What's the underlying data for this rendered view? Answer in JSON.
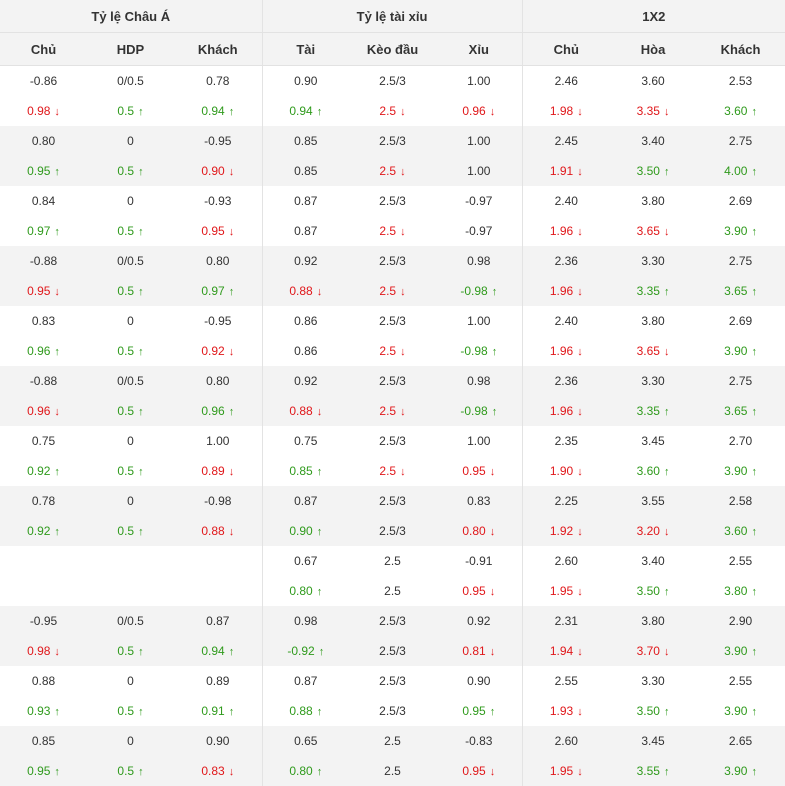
{
  "headers": {
    "groups": [
      "Tỷ lệ Châu Á",
      "Tỷ lệ tài xỉu",
      "1X2"
    ],
    "columns": [
      "Chủ",
      "HDP",
      "Khách",
      "Tài",
      "Kèo đầu",
      "Xỉu",
      "Chủ",
      "Hòa",
      "Khách"
    ]
  },
  "rows": [
    {
      "open": [
        "-0.86",
        "0/0.5",
        "0.78",
        "0.90",
        "2.5/3",
        "1.00",
        "2.46",
        "3.60",
        "2.53"
      ],
      "live": [
        [
          "0.98",
          "down"
        ],
        [
          "0.5",
          "up"
        ],
        [
          "0.94",
          "up"
        ],
        [
          "0.94",
          "up"
        ],
        [
          "2.5",
          "down"
        ],
        [
          "0.96",
          "down"
        ],
        [
          "1.98",
          "down"
        ],
        [
          "3.35",
          "down"
        ],
        [
          "3.60",
          "up"
        ]
      ]
    },
    {
      "open": [
        "0.80",
        "0",
        "-0.95",
        "0.85",
        "2.5/3",
        "1.00",
        "2.45",
        "3.40",
        "2.75"
      ],
      "live": [
        [
          "0.95",
          "up"
        ],
        [
          "0.5",
          "up"
        ],
        [
          "0.90",
          "down"
        ],
        [
          "0.85",
          ""
        ],
        [
          "2.5",
          "down"
        ],
        [
          "1.00",
          ""
        ],
        [
          "1.91",
          "down"
        ],
        [
          "3.50",
          "up"
        ],
        [
          "4.00",
          "up"
        ]
      ]
    },
    {
      "open": [
        "0.84",
        "0",
        "-0.93",
        "0.87",
        "2.5/3",
        "-0.97",
        "2.40",
        "3.80",
        "2.69"
      ],
      "live": [
        [
          "0.97",
          "up"
        ],
        [
          "0.5",
          "up"
        ],
        [
          "0.95",
          "down"
        ],
        [
          "0.87",
          ""
        ],
        [
          "2.5",
          "down"
        ],
        [
          "-0.97",
          ""
        ],
        [
          "1.96",
          "down"
        ],
        [
          "3.65",
          "down"
        ],
        [
          "3.90",
          "up"
        ]
      ]
    },
    {
      "open": [
        "-0.88",
        "0/0.5",
        "0.80",
        "0.92",
        "2.5/3",
        "0.98",
        "2.36",
        "3.30",
        "2.75"
      ],
      "live": [
        [
          "0.95",
          "down"
        ],
        [
          "0.5",
          "up"
        ],
        [
          "0.97",
          "up"
        ],
        [
          "0.88",
          "down"
        ],
        [
          "2.5",
          "down"
        ],
        [
          "-0.98",
          "up"
        ],
        [
          "1.96",
          "down"
        ],
        [
          "3.35",
          "up"
        ],
        [
          "3.65",
          "up"
        ]
      ]
    },
    {
      "open": [
        "0.83",
        "0",
        "-0.95",
        "0.86",
        "2.5/3",
        "1.00",
        "2.40",
        "3.80",
        "2.69"
      ],
      "live": [
        [
          "0.96",
          "up"
        ],
        [
          "0.5",
          "up"
        ],
        [
          "0.92",
          "down"
        ],
        [
          "0.86",
          ""
        ],
        [
          "2.5",
          "down"
        ],
        [
          "-0.98",
          "up"
        ],
        [
          "1.96",
          "down"
        ],
        [
          "3.65",
          "down"
        ],
        [
          "3.90",
          "up"
        ]
      ]
    },
    {
      "open": [
        "-0.88",
        "0/0.5",
        "0.80",
        "0.92",
        "2.5/3",
        "0.98",
        "2.36",
        "3.30",
        "2.75"
      ],
      "live": [
        [
          "0.96",
          "down"
        ],
        [
          "0.5",
          "up"
        ],
        [
          "0.96",
          "up"
        ],
        [
          "0.88",
          "down"
        ],
        [
          "2.5",
          "down"
        ],
        [
          "-0.98",
          "up"
        ],
        [
          "1.96",
          "down"
        ],
        [
          "3.35",
          "up"
        ],
        [
          "3.65",
          "up"
        ]
      ]
    },
    {
      "open": [
        "0.75",
        "0",
        "1.00",
        "0.75",
        "2.5/3",
        "1.00",
        "2.35",
        "3.45",
        "2.70"
      ],
      "live": [
        [
          "0.92",
          "up"
        ],
        [
          "0.5",
          "up"
        ],
        [
          "0.89",
          "down"
        ],
        [
          "0.85",
          "up"
        ],
        [
          "2.5",
          "down"
        ],
        [
          "0.95",
          "down"
        ],
        [
          "1.90",
          "down"
        ],
        [
          "3.60",
          "up"
        ],
        [
          "3.90",
          "up"
        ]
      ]
    },
    {
      "open": [
        "0.78",
        "0",
        "-0.98",
        "0.87",
        "2.5/3",
        "0.83",
        "2.25",
        "3.55",
        "2.58"
      ],
      "live": [
        [
          "0.92",
          "up"
        ],
        [
          "0.5",
          "up"
        ],
        [
          "0.88",
          "down"
        ],
        [
          "0.90",
          "up"
        ],
        [
          "2.5/3",
          ""
        ],
        [
          "0.80",
          "down"
        ],
        [
          "1.92",
          "down"
        ],
        [
          "3.20",
          "down"
        ],
        [
          "3.60",
          "up"
        ]
      ]
    },
    {
      "open": [
        "",
        "",
        "",
        "0.67",
        "2.5",
        "-0.91",
        "2.60",
        "3.40",
        "2.55"
      ],
      "live": [
        [
          "",
          ""
        ],
        [
          "",
          ""
        ],
        [
          "",
          ""
        ],
        [
          "0.80",
          "up"
        ],
        [
          "2.5",
          ""
        ],
        [
          "0.95",
          "down"
        ],
        [
          "1.95",
          "down"
        ],
        [
          "3.50",
          "up"
        ],
        [
          "3.80",
          "up"
        ]
      ]
    },
    {
      "open": [
        "-0.95",
        "0/0.5",
        "0.87",
        "0.98",
        "2.5/3",
        "0.92",
        "2.31",
        "3.80",
        "2.90"
      ],
      "live": [
        [
          "0.98",
          "down"
        ],
        [
          "0.5",
          "up"
        ],
        [
          "0.94",
          "up"
        ],
        [
          "-0.92",
          "up"
        ],
        [
          "2.5/3",
          ""
        ],
        [
          "0.81",
          "down"
        ],
        [
          "1.94",
          "down"
        ],
        [
          "3.70",
          "down"
        ],
        [
          "3.90",
          "up"
        ]
      ]
    },
    {
      "open": [
        "0.88",
        "0",
        "0.89",
        "0.87",
        "2.5/3",
        "0.90",
        "2.55",
        "3.30",
        "2.55"
      ],
      "live": [
        [
          "0.93",
          "up"
        ],
        [
          "0.5",
          "up"
        ],
        [
          "0.91",
          "up"
        ],
        [
          "0.88",
          "up"
        ],
        [
          "2.5/3",
          ""
        ],
        [
          "0.95",
          "up"
        ],
        [
          "1.93",
          "down"
        ],
        [
          "3.50",
          "up"
        ],
        [
          "3.90",
          "up"
        ]
      ]
    },
    {
      "open": [
        "0.85",
        "0",
        "0.90",
        "0.65",
        "2.5",
        "-0.83",
        "2.60",
        "3.45",
        "2.65"
      ],
      "live": [
        [
          "0.95",
          "up"
        ],
        [
          "0.5",
          "up"
        ],
        [
          "0.83",
          "down"
        ],
        [
          "0.80",
          "up"
        ],
        [
          "2.5",
          ""
        ],
        [
          "0.95",
          "down"
        ],
        [
          "1.95",
          "down"
        ],
        [
          "3.55",
          "up"
        ],
        [
          "3.90",
          "up"
        ]
      ]
    }
  ],
  "colors": {
    "up": "#2f9a1c",
    "down": "#e0171a",
    "header_bg": "#f3f3f3",
    "shade_bg": "#f3f3f3"
  },
  "icons": {
    "up": "arrow-up-icon",
    "down": "arrow-down-icon"
  }
}
